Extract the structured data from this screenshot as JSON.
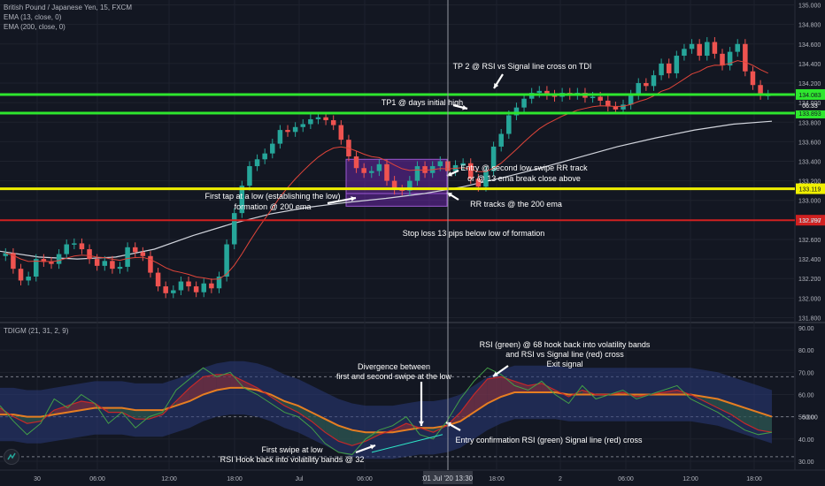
{
  "header": {
    "symbol_title": "British Pound / Japanese Yen, 15, FXCM",
    "ema_fast": "EMA (13, close, 0)",
    "ema_slow": "EMA (200, close, 0)",
    "indicator_title": "TDIGM (21, 31, 2, 9)"
  },
  "colors": {
    "background": "#131722",
    "up_candle": "#26a69a",
    "down_candle": "#ef5350",
    "ema13": "#e0453a",
    "ema200": "#d1d4dc",
    "green_line": "#2ee62e",
    "yellow_line": "#f0f000",
    "red_line": "#d02020",
    "box_fill": "#7b2bbf",
    "rsi": "#2e7d32",
    "signal": "#c62828",
    "mid_band": "#e67e22",
    "arrow": "#ffffff"
  },
  "icons": [
    "indicator-logo-icon"
  ],
  "chart_data": [
    {
      "type": "candlestick",
      "title": "British Pound / Japanese Yen, 15, FXCM",
      "ylim": [
        131.75,
        135.05
      ],
      "y_ticks": [
        "135.000",
        "134.800",
        "134.600",
        "134.400",
        "134.200",
        "134.000",
        "133.800",
        "133.600",
        "133.400",
        "133.200",
        "133.000",
        "132.800",
        "132.600",
        "132.400",
        "132.200",
        "132.000",
        "131.800"
      ],
      "x_ticks": [
        "30",
        "06:00",
        "12:00",
        "18:00",
        "Jul",
        "06:00",
        "12:00",
        "18:00",
        "2",
        "06:00",
        "12:00",
        "18:00"
      ],
      "crosshair_label": "01 Jul '20  13:30",
      "series": [
        {
          "name": "EMA (13, close, 0)",
          "kind": "line"
        },
        {
          "name": "EMA (200, close, 0)",
          "kind": "line"
        }
      ],
      "ema200": [
        132.48,
        132.42,
        132.4,
        132.42,
        132.5,
        132.64,
        132.76,
        132.86,
        132.93,
        132.98,
        133.02,
        133.07,
        133.14,
        133.23,
        133.33,
        133.44,
        133.55,
        133.64,
        133.72,
        133.78,
        133.81
      ],
      "candles_close": [
        132.46,
        132.3,
        132.18,
        132.22,
        132.4,
        132.37,
        132.35,
        132.45,
        132.55,
        132.56,
        132.5,
        132.4,
        132.33,
        132.38,
        132.3,
        132.32,
        132.52,
        132.47,
        132.43,
        132.26,
        132.12,
        132.05,
        132.08,
        132.17,
        132.12,
        132.06,
        132.15,
        132.1,
        132.22,
        132.55,
        132.87,
        133.15,
        133.35,
        133.42,
        133.48,
        133.58,
        133.72,
        133.7,
        133.75,
        133.78,
        133.83,
        133.85,
        133.82,
        133.77,
        133.62,
        133.45,
        133.33,
        133.28,
        133.3,
        133.37,
        133.2,
        133.11,
        133.1,
        133.2,
        133.35,
        133.28,
        133.35,
        133.4,
        133.3,
        133.36,
        133.38,
        133.22,
        133.14,
        133.3,
        133.55,
        133.68,
        133.87,
        133.95,
        134.04,
        134.1,
        134.12,
        134.08,
        134.06,
        134.1,
        134.08,
        134.1,
        134.05,
        134.06,
        134.02,
        133.96,
        133.93,
        133.98,
        134.08,
        134.2,
        134.17,
        134.28,
        134.4,
        134.3,
        134.48,
        134.55,
        134.6,
        134.48,
        134.62,
        134.5,
        134.38,
        134.52,
        134.6,
        134.32,
        134.18,
        134.08,
        134.08
      ],
      "levels": [
        {
          "label": "134.083",
          "value": 134.083,
          "color": "#2ee62e"
        },
        {
          "label": "133.893",
          "value": 133.893,
          "color": "#2ee62e"
        },
        {
          "label": "133.119",
          "value": 133.119,
          "color": "#f0f000"
        },
        {
          "label": "132.797",
          "value": 132.797,
          "color": "#d02020"
        }
      ],
      "countdown_label": "06:33",
      "annotations": [
        "TP 2 @ RSI vs Signal line cross on TDI",
        "TP1 @ days initial high",
        "Entry @ second low swipe RR track",
        "or @ 13 ema break close above",
        "First tap at a low (establishing the low)",
        "formation @ 200 ema",
        "RR tracks @ the 200 ema",
        "Stop loss 13 pips below low of formation"
      ]
    },
    {
      "type": "line",
      "title": "TDIGM (21, 31, 2, 9)",
      "ylim": [
        26,
        92
      ],
      "y_ticks": [
        "90.00",
        "80.00",
        "70.00",
        "60.00",
        "50.00",
        "40.00",
        "30.00"
      ],
      "levels": [
        68,
        50,
        32
      ],
      "current_label": "50.00",
      "series": [
        {
          "name": "RSI",
          "values": [
            55,
            48,
            42,
            47,
            58,
            54,
            60,
            56,
            47,
            52,
            45,
            50,
            52,
            62,
            67,
            72,
            68,
            70,
            63,
            60,
            56,
            52,
            50,
            45,
            38,
            34,
            33,
            40,
            44,
            46,
            50,
            42,
            40,
            48,
            58,
            66,
            72,
            69,
            64,
            62,
            66,
            60,
            56,
            64,
            58,
            60,
            62,
            58,
            60,
            62,
            64,
            58,
            55,
            52,
            48,
            44,
            42,
            43
          ]
        },
        {
          "name": "Signal",
          "values": [
            54,
            50,
            47,
            48,
            53,
            55,
            57,
            56,
            52,
            52,
            49,
            49,
            51,
            57,
            63,
            68,
            69,
            69,
            66,
            63,
            59,
            55,
            52,
            48,
            43,
            39,
            37,
            39,
            42,
            44,
            47,
            45,
            43,
            46,
            52,
            60,
            67,
            68,
            66,
            64,
            65,
            62,
            59,
            62,
            60,
            60,
            61,
            59,
            60,
            61,
            62,
            60,
            57,
            54,
            51,
            47,
            44,
            43
          ]
        },
        {
          "name": "Middle band",
          "values": [
            51,
            51,
            50,
            50,
            51,
            52,
            53,
            54,
            54,
            54,
            53,
            53,
            53,
            55,
            57,
            60,
            62,
            63,
            63,
            62,
            60,
            57,
            55,
            52,
            49,
            46,
            44,
            43,
            43,
            43,
            44,
            45,
            45,
            46,
            48,
            52,
            56,
            59,
            61,
            61,
            61,
            61,
            60,
            60,
            60,
            60,
            60,
            60,
            60,
            60,
            60,
            60,
            59,
            58,
            56,
            54,
            52,
            50
          ]
        }
      ],
      "annotations": [
        "RSI (green) @ 68 hook back into volatility bands",
        "and RSI vs Signal line (red) cross",
        "Exit signal",
        "Divergence between",
        "first and second swipe at the low",
        "Entry confirmation RSI (green) Signal line (red) cross",
        "First swipe at low",
        "RSI Hook back into volatility bands @ 32"
      ]
    }
  ]
}
